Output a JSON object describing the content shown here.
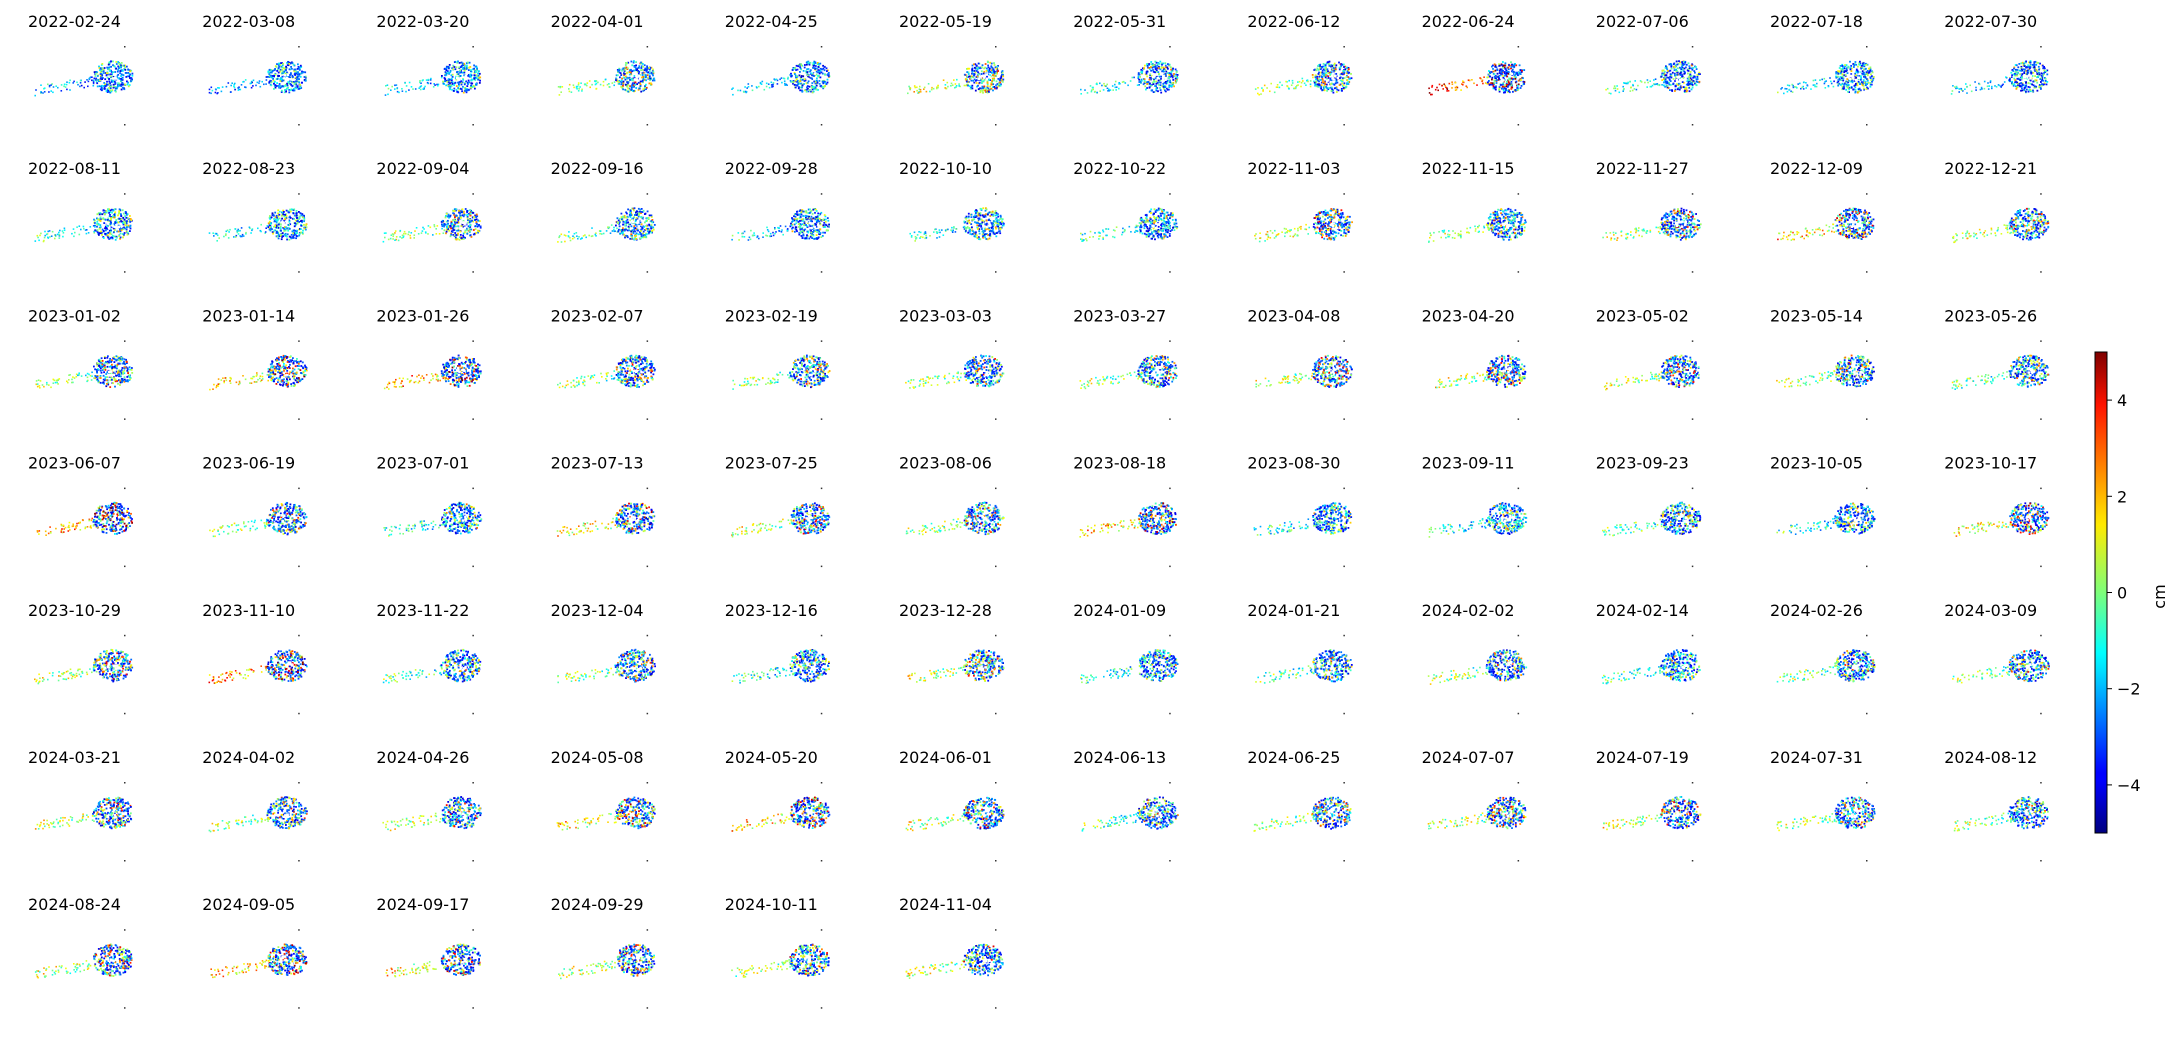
{
  "chart_data": {
    "type": "heatmap",
    "title": "",
    "layout": {
      "columns": 12,
      "rows": 7
    },
    "panels": [
      {
        "date": "2022-02-24",
        "tint": 0.35
      },
      {
        "date": "2022-03-08",
        "tint": 0.3
      },
      {
        "date": "2022-03-20",
        "tint": 0.4
      },
      {
        "date": "2022-04-01",
        "tint": 0.55
      },
      {
        "date": "2022-04-25",
        "tint": 0.4
      },
      {
        "date": "2022-05-19",
        "tint": 0.6
      },
      {
        "date": "2022-05-31",
        "tint": 0.45
      },
      {
        "date": "2022-06-12",
        "tint": 0.55
      },
      {
        "date": "2022-06-24",
        "tint": 0.85
      },
      {
        "date": "2022-07-06",
        "tint": 0.45
      },
      {
        "date": "2022-07-18",
        "tint": 0.4
      },
      {
        "date": "2022-07-30",
        "tint": 0.4
      },
      {
        "date": "2022-08-11",
        "tint": 0.45
      },
      {
        "date": "2022-08-23",
        "tint": 0.4
      },
      {
        "date": "2022-09-04",
        "tint": 0.55
      },
      {
        "date": "2022-09-16",
        "tint": 0.5
      },
      {
        "date": "2022-09-28",
        "tint": 0.4
      },
      {
        "date": "2022-10-10",
        "tint": 0.45
      },
      {
        "date": "2022-10-22",
        "tint": 0.45
      },
      {
        "date": "2022-11-03",
        "tint": 0.6
      },
      {
        "date": "2022-11-15",
        "tint": 0.55
      },
      {
        "date": "2022-11-27",
        "tint": 0.6
      },
      {
        "date": "2022-12-09",
        "tint": 0.7
      },
      {
        "date": "2022-12-21",
        "tint": 0.6
      },
      {
        "date": "2023-01-02",
        "tint": 0.55
      },
      {
        "date": "2023-01-14",
        "tint": 0.7
      },
      {
        "date": "2023-01-26",
        "tint": 0.75
      },
      {
        "date": "2023-02-07",
        "tint": 0.55
      },
      {
        "date": "2023-02-19",
        "tint": 0.55
      },
      {
        "date": "2023-03-03",
        "tint": 0.55
      },
      {
        "date": "2023-03-27",
        "tint": 0.55
      },
      {
        "date": "2023-04-08",
        "tint": 0.6
      },
      {
        "date": "2023-04-20",
        "tint": 0.6
      },
      {
        "date": "2023-05-02",
        "tint": 0.6
      },
      {
        "date": "2023-05-14",
        "tint": 0.55
      },
      {
        "date": "2023-05-26",
        "tint": 0.5
      },
      {
        "date": "2023-06-07",
        "tint": 0.75
      },
      {
        "date": "2023-06-19",
        "tint": 0.55
      },
      {
        "date": "2023-07-01",
        "tint": 0.45
      },
      {
        "date": "2023-07-13",
        "tint": 0.65
      },
      {
        "date": "2023-07-25",
        "tint": 0.6
      },
      {
        "date": "2023-08-06",
        "tint": 0.55
      },
      {
        "date": "2023-08-18",
        "tint": 0.7
      },
      {
        "date": "2023-08-30",
        "tint": 0.45
      },
      {
        "date": "2023-09-11",
        "tint": 0.45
      },
      {
        "date": "2023-09-23",
        "tint": 0.5
      },
      {
        "date": "2023-10-05",
        "tint": 0.45
      },
      {
        "date": "2023-10-17",
        "tint": 0.65
      },
      {
        "date": "2023-10-29",
        "tint": 0.6
      },
      {
        "date": "2023-11-10",
        "tint": 0.75
      },
      {
        "date": "2023-11-22",
        "tint": 0.5
      },
      {
        "date": "2023-12-04",
        "tint": 0.55
      },
      {
        "date": "2023-12-16",
        "tint": 0.45
      },
      {
        "date": "2023-12-28",
        "tint": 0.6
      },
      {
        "date": "2024-01-09",
        "tint": 0.45
      },
      {
        "date": "2024-01-21",
        "tint": 0.5
      },
      {
        "date": "2024-02-02",
        "tint": 0.55
      },
      {
        "date": "2024-02-14",
        "tint": 0.45
      },
      {
        "date": "2024-02-26",
        "tint": 0.55
      },
      {
        "date": "2024-03-09",
        "tint": 0.55
      },
      {
        "date": "2024-03-21",
        "tint": 0.6
      },
      {
        "date": "2024-04-02",
        "tint": 0.55
      },
      {
        "date": "2024-04-26",
        "tint": 0.6
      },
      {
        "date": "2024-05-08",
        "tint": 0.65
      },
      {
        "date": "2024-05-20",
        "tint": 0.7
      },
      {
        "date": "2024-06-01",
        "tint": 0.6
      },
      {
        "date": "2024-06-13",
        "tint": 0.5
      },
      {
        "date": "2024-06-25",
        "tint": 0.55
      },
      {
        "date": "2024-07-07",
        "tint": 0.6
      },
      {
        "date": "2024-07-19",
        "tint": 0.6
      },
      {
        "date": "2024-07-31",
        "tint": 0.55
      },
      {
        "date": "2024-08-12",
        "tint": 0.55
      },
      {
        "date": "2024-08-24",
        "tint": 0.6
      },
      {
        "date": "2024-09-05",
        "tint": 0.7
      },
      {
        "date": "2024-09-17",
        "tint": 0.65
      },
      {
        "date": "2024-09-29",
        "tint": 0.6
      },
      {
        "date": "2024-10-11",
        "tint": 0.55
      },
      {
        "date": "2024-11-04",
        "tint": 0.6
      }
    ],
    "colorbar": {
      "colormap": "jet",
      "label": "cm",
      "range": [
        -5,
        5
      ],
      "ticks": [
        {
          "value": 4,
          "label": "4"
        },
        {
          "value": 2,
          "label": "2"
        },
        {
          "value": 0,
          "label": "0"
        },
        {
          "value": -2,
          "label": "−2"
        },
        {
          "value": -4,
          "label": "−4"
        }
      ]
    },
    "grid": false,
    "legend": "right"
  }
}
